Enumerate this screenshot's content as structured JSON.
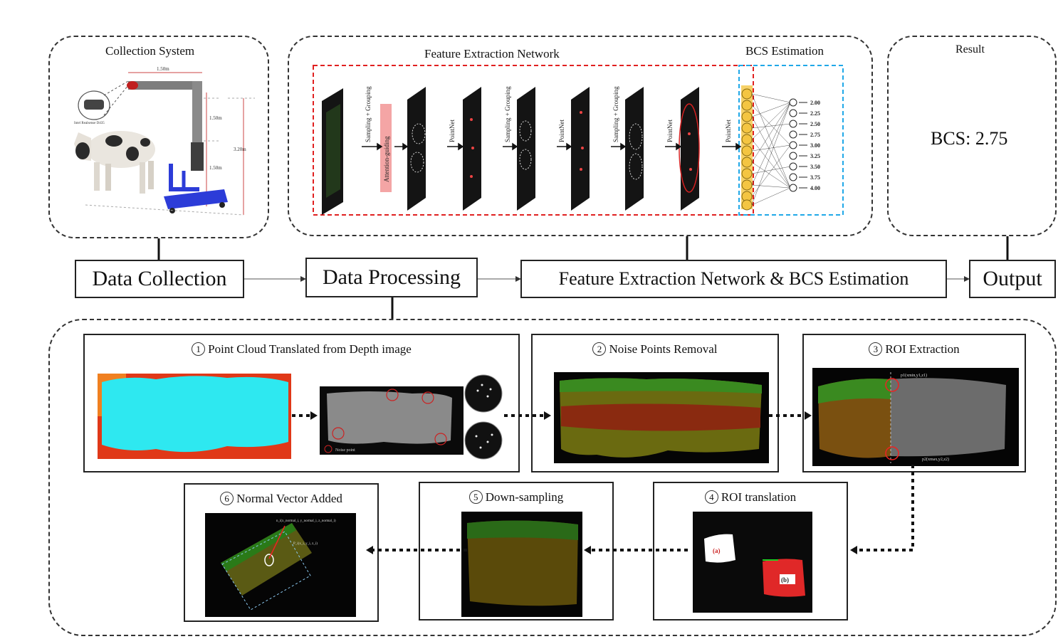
{
  "top": {
    "collection_title": "Collection System",
    "feature_title": "Feature Extraction Network",
    "bcs_title": "BCS Estimation",
    "result_title": "Result",
    "result_value": "BCS: 2.75",
    "rig_labels": [
      "1.50m",
      "1.50m",
      "1.50m",
      "3.20m",
      "Intel Realsense D435"
    ],
    "network_labels": [
      "Sampling + Grouping",
      "Attention-guiding",
      "PointNet",
      "Sampling + Grouping",
      "PointNet",
      "Sampling + Grouping",
      "PointNet",
      "PointNet"
    ],
    "bcs_outputs": [
      "2.00",
      "2.25",
      "2.50",
      "2.75",
      "3.00",
      "3.25",
      "3.50",
      "3.75",
      "4.00"
    ]
  },
  "pipeline": {
    "stages": [
      "Data Collection",
      "Data Processing",
      "Feature Extraction Network & BCS Estimation",
      "Output"
    ]
  },
  "processing": {
    "steps": [
      {
        "num": "1",
        "label": "Point Cloud Translated from Depth image"
      },
      {
        "num": "2",
        "label": "Noise Points Removal"
      },
      {
        "num": "3",
        "label": "ROI Extraction"
      },
      {
        "num": "4",
        "label": "ROI translation"
      },
      {
        "num": "5",
        "label": "Down-sampling"
      },
      {
        "num": "6",
        "label": "Normal Vector Added"
      }
    ],
    "noise_legend": "Noise point",
    "roi_points": [
      "p1(xmin,y1,z1)",
      "p2(xmax,y2,z2)"
    ],
    "roi_tags": [
      "(a)",
      "(b)"
    ],
    "normal_labels": [
      "n_i(x_normal_i, y_normal_i, z_normal_i)",
      "P_i(x_i, y_i, z_i)"
    ]
  },
  "colors": {
    "red_box": "#e02020",
    "blue_box": "#20a8e8",
    "node_fill": "#f4c542",
    "depth_cyan": "#2ee8f0",
    "roi_red": "#e02828"
  }
}
